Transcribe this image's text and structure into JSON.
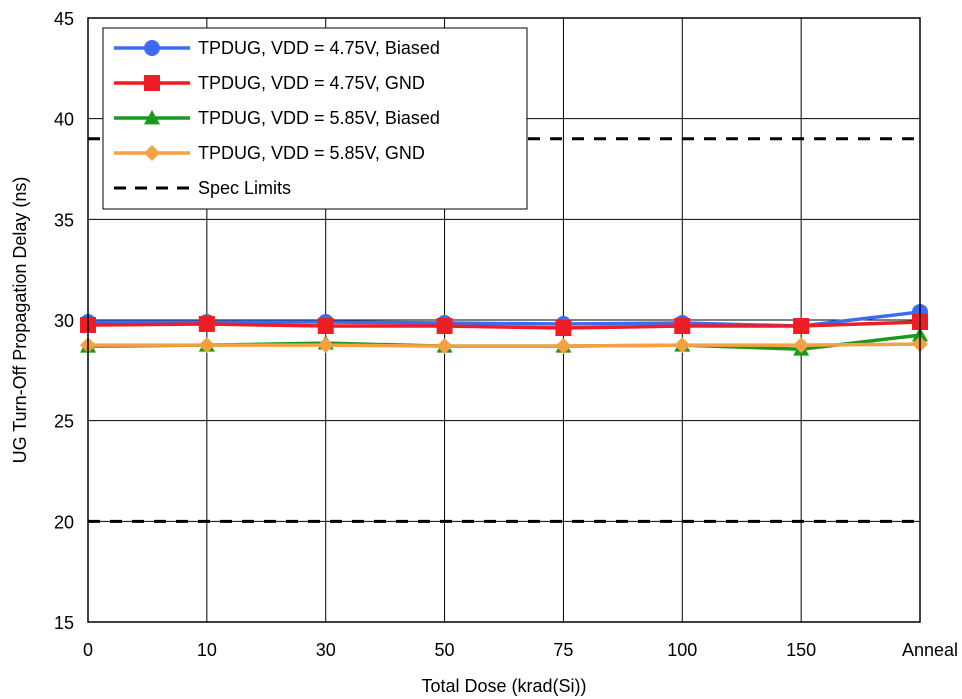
{
  "chart_data": {
    "type": "line",
    "xlabel": "Total Dose (krad(Si))",
    "ylabel": "UG Turn-Off Propagation Delay (ns)",
    "categories": [
      "0",
      "10",
      "30",
      "50",
      "75",
      "100",
      "150",
      "Anneal"
    ],
    "ylim": [
      15,
      45
    ],
    "yticks": [
      15,
      20,
      25,
      30,
      35,
      40,
      45
    ],
    "grid": true,
    "legend_position": "top-left",
    "series": [
      {
        "name": "TPDUG, VDD = 4.75V, Biased",
        "color": "#3b6cf0",
        "marker": "circle",
        "values": [
          29.9,
          29.9,
          29.9,
          29.85,
          29.8,
          29.85,
          29.7,
          30.4
        ]
      },
      {
        "name": "TPDUG, VDD = 4.75V, GND",
        "color": "#ee1c24",
        "marker": "square",
        "values": [
          29.75,
          29.8,
          29.7,
          29.7,
          29.6,
          29.7,
          29.7,
          29.9
        ]
      },
      {
        "name": "TPDUG, VDD = 5.85V, Biased",
        "color": "#1a9a1a",
        "marker": "triangle",
        "values": [
          28.7,
          28.75,
          28.85,
          28.7,
          28.7,
          28.75,
          28.55,
          29.25
        ]
      },
      {
        "name": "TPDUG, VDD = 5.85V, GND",
        "color": "#f5a043",
        "marker": "diamond",
        "values": [
          28.75,
          28.75,
          28.75,
          28.7,
          28.7,
          28.75,
          28.75,
          28.8
        ]
      }
    ],
    "spec_limits": {
      "name": "Spec Limits",
      "color": "#000000",
      "style": "dashed",
      "values": [
        39,
        20
      ]
    }
  }
}
